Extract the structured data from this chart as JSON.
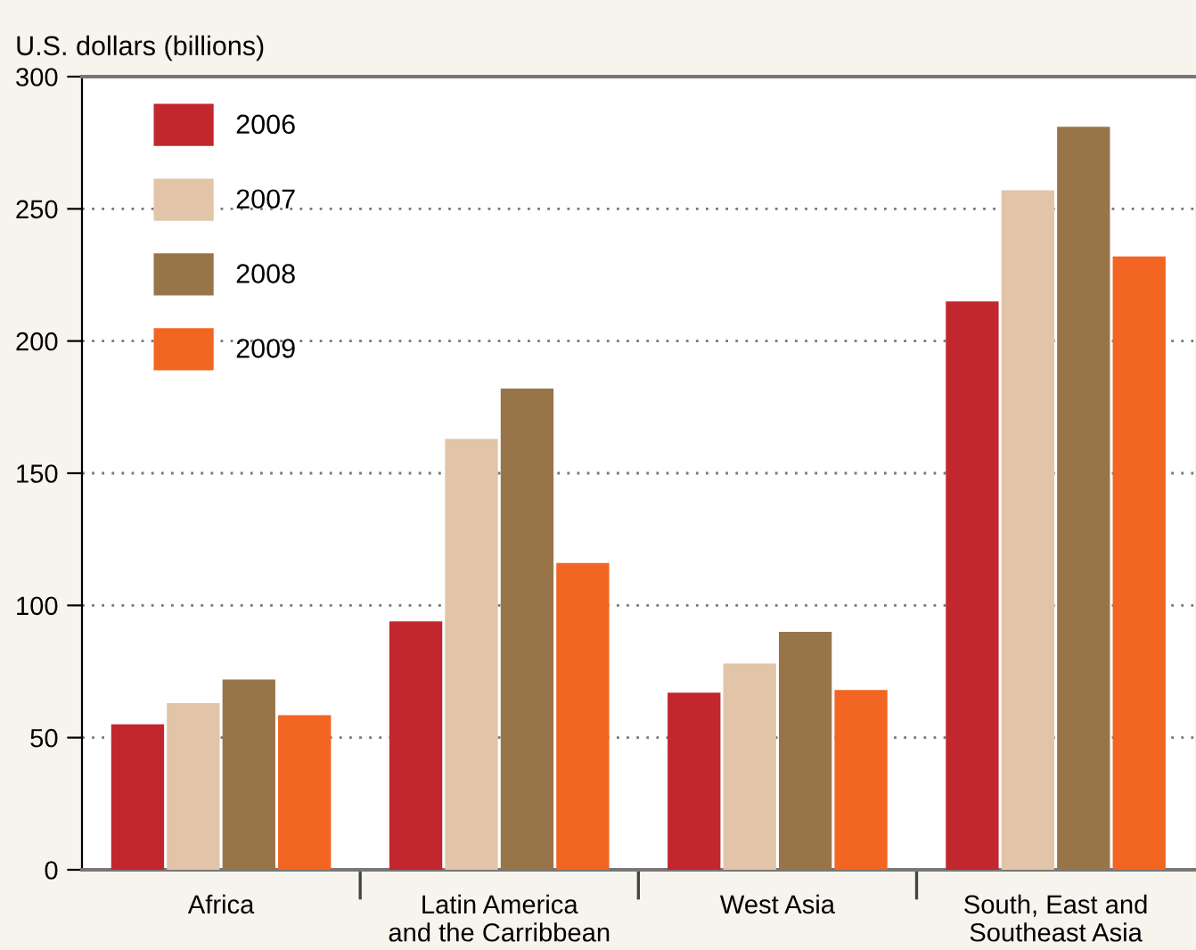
{
  "chart_data": {
    "type": "bar",
    "ylabel": "U.S. dollars (billions)",
    "categories": [
      "Africa",
      "Latin America\nand the Carribbean",
      "West Asia",
      "South, East and\nSoutheast Asia"
    ],
    "series": [
      {
        "name": "2006",
        "color": "#c1272d",
        "values": [
          55,
          94,
          67,
          215
        ]
      },
      {
        "name": "2007",
        "color": "#e2c4a8",
        "values": [
          63,
          163,
          78,
          257
        ]
      },
      {
        "name": "2008",
        "color": "#987549",
        "values": [
          72,
          182,
          90,
          281
        ]
      },
      {
        "name": "2009",
        "color": "#f26522",
        "values": [
          58.5,
          116,
          68,
          232
        ]
      }
    ],
    "ylim": [
      0,
      300
    ],
    "yticks": [
      0,
      50,
      100,
      150,
      200,
      250,
      300
    ],
    "grid": "y",
    "legend": "top left"
  }
}
